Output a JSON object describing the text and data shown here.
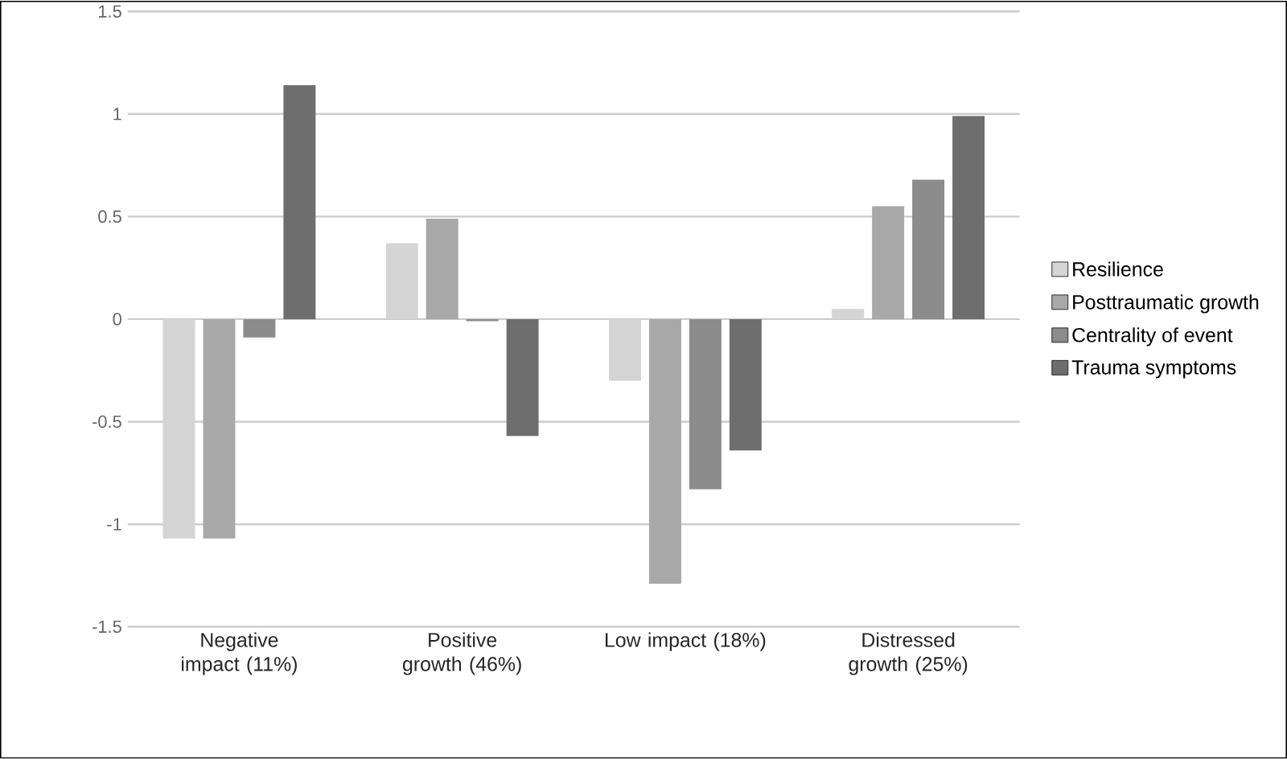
{
  "chart_data": {
    "type": "bar",
    "categories": [
      "Negative impact (11%)",
      "Positive growth (46%)",
      "Low impact (18%)",
      "Distressed growth (25%)"
    ],
    "series": [
      {
        "name": "Resilience",
        "color": "#d4d4d4",
        "values": [
          -1.07,
          0.37,
          -0.3,
          0.05
        ]
      },
      {
        "name": "Posttraumatic growth",
        "color": "#a8a8a8",
        "values": [
          -1.07,
          0.49,
          -1.29,
          0.55
        ]
      },
      {
        "name": "Centrality of event",
        "color": "#8c8c8c",
        "values": [
          -0.09,
          -0.01,
          -0.83,
          0.68
        ]
      },
      {
        "name": "Trauma symptoms",
        "color": "#6e6e6e",
        "values": [
          1.14,
          -0.57,
          -0.64,
          0.99
        ]
      }
    ],
    "ylim": [
      -1.5,
      1.5
    ],
    "yticks": [
      -1.5,
      -1,
      -0.5,
      0,
      0.5,
      1,
      1.5
    ],
    "grid": "y",
    "legend": "right"
  }
}
